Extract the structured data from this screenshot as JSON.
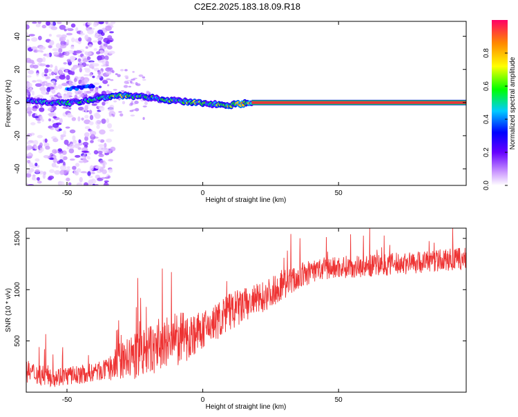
{
  "title": "C2E2.2025.183.18.09.R18",
  "colors": {
    "snr_line": "#ee3333",
    "ridge_core": "#e8353b",
    "ridge_edge": "#00cc66"
  },
  "chart_data": [
    {
      "type": "heatmap",
      "xlabel": "Height of straight line (km)",
      "ylabel": "Frequency (Hz)",
      "xlim": [
        -65,
        97
      ],
      "ylim": [
        -50,
        49
      ],
      "x_ticks": [
        -50,
        0,
        50
      ],
      "y_ticks": [
        -40,
        -20,
        0,
        20,
        40
      ],
      "colorbar": {
        "label": "Normalized spectral amplitude",
        "range": [
          0,
          1
        ],
        "ticks": [
          "0.0",
          "0.2",
          "0.4",
          "0.6",
          "0.8"
        ],
        "colormap": "rainbow (violet → blue → cyan → green → yellow → red)"
      },
      "features": {
        "noise_region_x": [
          -65,
          -35
        ],
        "ridge": [
          {
            "x": -62,
            "freq": 1,
            "amp": 0.45
          },
          {
            "x": -50,
            "freq": -0.5,
            "amp": 0.5
          },
          {
            "x": -35,
            "freq": 3.5,
            "amp": 0.6
          },
          {
            "x": -30,
            "freq": 4.5,
            "amp": 0.7
          },
          {
            "x": -20,
            "freq": 3,
            "amp": 0.55
          },
          {
            "x": -10,
            "freq": 1,
            "amp": 0.6
          },
          {
            "x": 0,
            "freq": -0.5,
            "amp": 0.7
          },
          {
            "x": 10,
            "freq": -1.5,
            "amp": 0.75
          },
          {
            "x": 18,
            "freq": 0,
            "amp": 0.8
          },
          {
            "x": 97,
            "freq": 0,
            "amp": 0.95
          }
        ],
        "side_branch": [
          {
            "x": -50,
            "freq": 8,
            "amp": 0.4
          },
          {
            "x": -40,
            "freq": 10,
            "amp": 0.35
          }
        ]
      }
    },
    {
      "type": "line",
      "xlabel": "Height of straight line (km)",
      "ylabel": "SNR (10 * v/v)",
      "xlim": [
        -65,
        97
      ],
      "ylim": [
        0,
        1600
      ],
      "x_ticks": [
        -50,
        0,
        50
      ],
      "y_ticks": [
        500,
        1000,
        1500
      ],
      "series": [
        {
          "x": [
            -65,
            -55,
            -45,
            -35,
            -30,
            -20,
            -10,
            0,
            10,
            20,
            30,
            40,
            50,
            60,
            70,
            80,
            90,
            97
          ],
          "y": [
            200,
            150,
            170,
            220,
            300,
            400,
            500,
            600,
            780,
            900,
            1050,
            1180,
            1220,
            1230,
            1250,
            1270,
            1290,
            1300
          ],
          "noise": [
            110,
            100,
            90,
            100,
            200,
            250,
            280,
            180,
            200,
            160,
            140,
            120,
            110,
            110,
            110,
            110,
            110,
            110
          ]
        }
      ]
    }
  ]
}
